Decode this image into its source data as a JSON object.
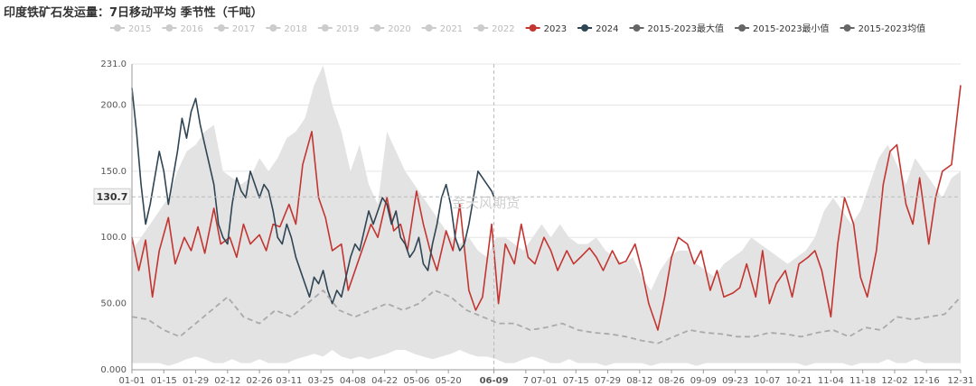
{
  "chart_data": {
    "type": "line",
    "title": "印度铁矿石发运量：7日移动平均 季节性（千吨）",
    "watermark": "金天风期货",
    "ylim": [
      0,
      231
    ],
    "y_ticks": [
      "0.000",
      "50.00",
      "100.0",
      "150.0",
      "200.0",
      "231.0"
    ],
    "y_tick_values": [
      0,
      50,
      100,
      150,
      200,
      231
    ],
    "x_ticks": [
      "01-01",
      "01-15",
      "01-29",
      "02-12",
      "02-26",
      "03-11",
      "03-25",
      "04-08",
      "04-22",
      "05-06",
      "05-20",
      "06-09",
      "7",
      "07-01",
      "07-15",
      "07-29",
      "08-12",
      "08-26",
      "09-09",
      "09-23",
      "10-07",
      "10-21",
      "11-04",
      "11-18",
      "12-02",
      "12-16",
      "12-31"
    ],
    "x_tick_days": [
      0,
      14,
      28,
      42,
      56,
      69,
      83,
      97,
      111,
      125,
      139,
      159,
      173,
      181,
      195,
      209,
      223,
      237,
      251,
      265,
      279,
      293,
      307,
      321,
      335,
      349,
      364
    ],
    "highlight_x": "06-09",
    "crosshair_value": "130.7",
    "crosshair_day": 159,
    "grid": true,
    "legend": {
      "placement": "top",
      "items": [
        {
          "name": "2015",
          "color": "#cccccc",
          "active": false
        },
        {
          "name": "2016",
          "color": "#cccccc",
          "active": false
        },
        {
          "name": "2017",
          "color": "#cccccc",
          "active": false
        },
        {
          "name": "2018",
          "color": "#cccccc",
          "active": false
        },
        {
          "name": "2019",
          "color": "#cccccc",
          "active": false
        },
        {
          "name": "2020",
          "color": "#cccccc",
          "active": false
        },
        {
          "name": "2021",
          "color": "#cccccc",
          "active": false
        },
        {
          "name": "2022",
          "color": "#cccccc",
          "active": false
        },
        {
          "name": "2023",
          "color": "#c23531",
          "active": true
        },
        {
          "name": "2024",
          "color": "#2f4554",
          "active": true
        },
        {
          "name": "2015-2023最大值",
          "color": "#666666",
          "active": true
        },
        {
          "name": "2015-2023最小值",
          "color": "#666666",
          "active": true
        },
        {
          "name": "2015-2023均值",
          "color": "#666666",
          "active": true
        }
      ]
    },
    "series": [
      {
        "name": "2023",
        "color": "#c23531",
        "x": [
          0,
          3,
          6,
          9,
          12,
          16,
          19,
          23,
          26,
          29,
          32,
          36,
          39,
          43,
          46,
          49,
          52,
          56,
          59,
          62,
          65,
          69,
          72,
          75,
          79,
          82,
          85,
          88,
          92,
          95,
          98,
          102,
          105,
          108,
          112,
          115,
          118,
          121,
          125,
          128,
          131,
          134,
          138,
          141,
          144,
          148,
          151,
          154,
          158,
          161,
          164,
          168,
          171,
          174,
          177,
          181,
          184,
          187,
          191,
          194,
          197,
          201,
          204,
          207,
          211,
          214,
          217,
          221,
          224,
          227,
          231,
          234,
          237,
          240,
          244,
          247,
          250,
          254,
          257,
          260,
          264,
          267,
          270,
          274,
          277,
          280,
          283,
          287,
          290,
          293,
          297,
          300,
          303,
          307,
          310,
          313,
          317,
          320,
          323,
          327,
          330,
          333,
          336,
          340,
          343,
          346,
          350,
          353,
          356,
          360,
          364
        ],
        "y": [
          100,
          75,
          98,
          55,
          90,
          115,
          80,
          100,
          90,
          108,
          88,
          122,
          95,
          100,
          85,
          110,
          95,
          102,
          90,
          110,
          108,
          125,
          110,
          155,
          180,
          130,
          115,
          90,
          95,
          60,
          75,
          95,
          110,
          100,
          130,
          105,
          110,
          90,
          135,
          110,
          90,
          75,
          105,
          90,
          125,
          60,
          45,
          55,
          110,
          50,
          95,
          80,
          110,
          85,
          80,
          100,
          90,
          75,
          90,
          80,
          85,
          92,
          85,
          75,
          90,
          80,
          82,
          95,
          75,
          50,
          30,
          55,
          85,
          100,
          95,
          80,
          90,
          60,
          75,
          55,
          58,
          62,
          80,
          55,
          90,
          50,
          65,
          75,
          55,
          80,
          85,
          90,
          75,
          40,
          95,
          130,
          110,
          70,
          55,
          90,
          140,
          165,
          170,
          125,
          110,
          145,
          95,
          130,
          150,
          155,
          215
        ]
      },
      {
        "name": "2024",
        "color": "#2f4554",
        "x": [
          0,
          2,
          4,
          6,
          8,
          10,
          12,
          14,
          16,
          18,
          20,
          22,
          24,
          26,
          28,
          30,
          32,
          34,
          36,
          38,
          40,
          42,
          44,
          46,
          48,
          50,
          52,
          54,
          56,
          58,
          60,
          62,
          64,
          66,
          68,
          70,
          72,
          74,
          76,
          78,
          80,
          82,
          84,
          86,
          88,
          90,
          92,
          94,
          96,
          98,
          100,
          102,
          104,
          106,
          108,
          110,
          112,
          114,
          116,
          118,
          120,
          122,
          124,
          126,
          128,
          130,
          132,
          134,
          136,
          138,
          140,
          142,
          144,
          146,
          148,
          150,
          152,
          154,
          156,
          158,
          159
        ],
        "y": [
          213,
          180,
          140,
          110,
          125,
          145,
          165,
          150,
          125,
          145,
          165,
          190,
          175,
          195,
          205,
          185,
          170,
          155,
          140,
          110,
          100,
          95,
          125,
          145,
          135,
          130,
          150,
          140,
          130,
          140,
          135,
          120,
          100,
          95,
          110,
          100,
          85,
          75,
          65,
          55,
          70,
          65,
          75,
          60,
          50,
          60,
          55,
          70,
          85,
          95,
          90,
          105,
          120,
          110,
          120,
          130,
          125,
          110,
          120,
          100,
          95,
          85,
          90,
          100,
          80,
          75,
          95,
          110,
          130,
          140,
          125,
          100,
          90,
          95,
          110,
          130,
          150,
          145,
          140,
          135,
          130.7
        ]
      },
      {
        "name": "2015-2023均值",
        "color": "#aaaaaa",
        "dashed": true,
        "x": [
          0,
          7,
          14,
          21,
          28,
          35,
          42,
          49,
          56,
          63,
          70,
          77,
          84,
          91,
          98,
          105,
          112,
          119,
          126,
          133,
          140,
          147,
          154,
          161,
          168,
          175,
          182,
          189,
          196,
          203,
          210,
          217,
          224,
          231,
          238,
          245,
          252,
          259,
          266,
          273,
          280,
          287,
          294,
          301,
          308,
          315,
          322,
          329,
          336,
          343,
          350,
          357,
          364
        ],
        "y": [
          40,
          38,
          30,
          25,
          35,
          45,
          55,
          40,
          35,
          45,
          40,
          50,
          60,
          45,
          40,
          45,
          50,
          45,
          50,
          60,
          55,
          45,
          40,
          35,
          35,
          30,
          32,
          35,
          30,
          28,
          27,
          25,
          22,
          20,
          25,
          30,
          28,
          27,
          25,
          25,
          28,
          27,
          25,
          28,
          30,
          25,
          32,
          30,
          40,
          38,
          40,
          42,
          55
        ]
      }
    ],
    "band": {
      "name": "2015-2023最大值",
      "color": "#e3e3e3",
      "x": [
        0,
        4,
        8,
        12,
        16,
        20,
        24,
        28,
        32,
        36,
        40,
        44,
        48,
        52,
        56,
        60,
        64,
        68,
        72,
        76,
        80,
        84,
        88,
        92,
        96,
        100,
        104,
        108,
        112,
        116,
        120,
        124,
        128,
        132,
        136,
        140,
        144,
        148,
        152,
        156,
        160,
        164,
        168,
        172,
        176,
        180,
        184,
        188,
        192,
        196,
        200,
        204,
        208,
        212,
        216,
        220,
        224,
        228,
        232,
        236,
        240,
        244,
        248,
        252,
        256,
        260,
        264,
        268,
        272,
        276,
        280,
        284,
        288,
        292,
        296,
        300,
        304,
        308,
        312,
        316,
        320,
        324,
        328,
        332,
        336,
        340,
        344,
        348,
        352,
        356,
        360,
        364
      ],
      "max": [
        90,
        100,
        110,
        120,
        130,
        150,
        165,
        170,
        180,
        185,
        150,
        145,
        140,
        145,
        160,
        150,
        160,
        175,
        180,
        190,
        215,
        230,
        200,
        180,
        150,
        170,
        140,
        125,
        180,
        165,
        150,
        140,
        130,
        120,
        110,
        100,
        95,
        100,
        90,
        85,
        100,
        100,
        95,
        90,
        100,
        110,
        100,
        110,
        100,
        95,
        95,
        100,
        90,
        85,
        80,
        85,
        70,
        60,
        75,
        85,
        90,
        90,
        80,
        75,
        70,
        80,
        85,
        90,
        100,
        95,
        90,
        85,
        80,
        85,
        90,
        100,
        120,
        130,
        120,
        110,
        120,
        140,
        160,
        170,
        155,
        140,
        160,
        150,
        140,
        130,
        145,
        150
      ],
      "min": [
        5,
        5,
        5,
        5,
        3,
        5,
        8,
        10,
        8,
        5,
        5,
        8,
        5,
        5,
        8,
        5,
        5,
        5,
        8,
        10,
        12,
        10,
        15,
        10,
        8,
        10,
        8,
        10,
        12,
        15,
        15,
        12,
        10,
        8,
        10,
        12,
        15,
        12,
        10,
        10,
        8,
        5,
        5,
        8,
        10,
        8,
        5,
        5,
        8,
        5,
        5,
        5,
        3,
        5,
        5,
        5,
        5,
        3,
        5,
        5,
        5,
        5,
        3,
        5,
        5,
        5,
        5,
        5,
        5,
        5,
        5,
        5,
        5,
        5,
        3,
        5,
        5,
        5,
        5,
        3,
        5,
        5,
        5,
        8,
        5,
        5,
        8,
        5,
        5,
        5,
        5,
        5
      ]
    }
  }
}
